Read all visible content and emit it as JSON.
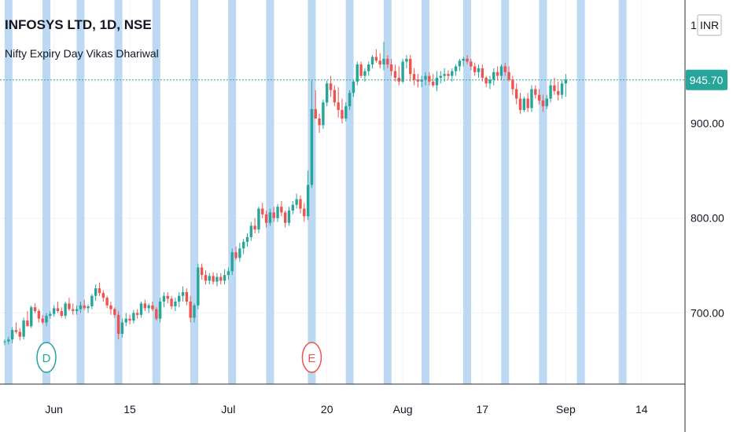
{
  "header": {
    "title": "INFOSYS LTD, 1D, NSE",
    "indicator": "Nifty Expiry Day Vikas Dhariwal"
  },
  "price_axis": {
    "currency": "INR",
    "last_price": "945.70",
    "top_label": "1 0"
  },
  "markers": [
    {
      "letter": "D",
      "color": "#26a69a",
      "index": 11
    },
    {
      "letter": "E",
      "color": "#ef5350",
      "index": 81
    }
  ],
  "colors": {
    "up": "#26a69a",
    "down": "#ef5350",
    "highlight": "#bcd8f2",
    "last_line": "#26a69a"
  },
  "chart_data": {
    "type": "candlestick",
    "title": "INFOSYS LTD, 1D, NSE",
    "ylim": [
      625,
      1030
    ],
    "y_ticks": [
      "700.00",
      "800.00",
      "900.00"
    ],
    "x_ticks": [
      {
        "label": "Jun",
        "index": 13
      },
      {
        "label": "15",
        "index": 33
      },
      {
        "label": "Jul",
        "index": 59
      },
      {
        "label": "20",
        "index": 85
      },
      {
        "label": "Aug",
        "index": 105
      },
      {
        "label": "17",
        "index": 126
      },
      {
        "label": "Sep",
        "index": 148
      },
      {
        "label": "14",
        "index": 168
      }
    ],
    "expiry_day_indices": [
      1,
      11,
      20,
      30,
      40,
      50,
      60,
      70,
      81,
      91,
      101,
      111,
      122,
      132,
      142,
      152,
      163
    ],
    "candles": [
      [
        670,
        672,
        666,
        670
      ],
      [
        670,
        675,
        667,
        672
      ],
      [
        672,
        685,
        668,
        682
      ],
      [
        682,
        690,
        678,
        680
      ],
      [
        680,
        684,
        671,
        675
      ],
      [
        675,
        695,
        672,
        692
      ],
      [
        692,
        702,
        688,
        686
      ],
      [
        686,
        708,
        684,
        706
      ],
      [
        706,
        710,
        700,
        702
      ],
      [
        702,
        704,
        690,
        694
      ],
      [
        694,
        698,
        688,
        690
      ],
      [
        690,
        700,
        686,
        697
      ],
      [
        697,
        702,
        694,
        699
      ],
      [
        699,
        708,
        696,
        705
      ],
      [
        705,
        712,
        700,
        702
      ],
      [
        702,
        706,
        695,
        697
      ],
      [
        697,
        712,
        694,
        710
      ],
      [
        710,
        716,
        702,
        704
      ],
      [
        704,
        710,
        698,
        702
      ],
      [
        702,
        708,
        698,
        704
      ],
      [
        704,
        712,
        700,
        708
      ],
      [
        708,
        714,
        703,
        705
      ],
      [
        705,
        709,
        700,
        707
      ],
      [
        707,
        720,
        704,
        718
      ],
      [
        718,
        730,
        713,
        726
      ],
      [
        726,
        732,
        718,
        721
      ],
      [
        721,
        724,
        712,
        716
      ],
      [
        716,
        718,
        705,
        708
      ],
      [
        708,
        712,
        698,
        704
      ],
      [
        704,
        706,
        695,
        698
      ],
      [
        698,
        702,
        672,
        678
      ],
      [
        678,
        694,
        674,
        690
      ],
      [
        690,
        700,
        686,
        694
      ],
      [
        694,
        698,
        688,
        692
      ],
      [
        692,
        703,
        689,
        700
      ],
      [
        700,
        704,
        694,
        698
      ],
      [
        698,
        712,
        695,
        710
      ],
      [
        710,
        714,
        702,
        705
      ],
      [
        705,
        710,
        700,
        708
      ],
      [
        708,
        712,
        702,
        704
      ],
      [
        704,
        706,
        692,
        694
      ],
      [
        694,
        716,
        690,
        712
      ],
      [
        712,
        722,
        706,
        718
      ],
      [
        718,
        722,
        710,
        715
      ],
      [
        715,
        718,
        704,
        707
      ],
      [
        707,
        716,
        702,
        712
      ],
      [
        712,
        722,
        706,
        718
      ],
      [
        718,
        728,
        712,
        722
      ],
      [
        722,
        726,
        708,
        712
      ],
      [
        712,
        718,
        690,
        695
      ],
      [
        695,
        710,
        690,
        708
      ],
      [
        708,
        752,
        704,
        748
      ],
      [
        748,
        752,
        735,
        740
      ],
      [
        740,
        745,
        730,
        734
      ],
      [
        734,
        742,
        730,
        739
      ],
      [
        739,
        743,
        730,
        733
      ],
      [
        733,
        742,
        728,
        738
      ],
      [
        738,
        742,
        730,
        734
      ],
      [
        734,
        746,
        730,
        740
      ],
      [
        740,
        748,
        735,
        744
      ],
      [
        744,
        768,
        740,
        764
      ],
      [
        764,
        770,
        756,
        758
      ],
      [
        758,
        774,
        754,
        768
      ],
      [
        768,
        778,
        762,
        775
      ],
      [
        775,
        784,
        770,
        780
      ],
      [
        780,
        796,
        776,
        792
      ],
      [
        792,
        800,
        784,
        788
      ],
      [
        788,
        812,
        784,
        810
      ],
      [
        810,
        816,
        800,
        804
      ],
      [
        804,
        808,
        790,
        795
      ],
      [
        795,
        810,
        792,
        806
      ],
      [
        806,
        812,
        796,
        800
      ],
      [
        800,
        815,
        796,
        812
      ],
      [
        812,
        818,
        802,
        806
      ],
      [
        806,
        808,
        790,
        795
      ],
      [
        795,
        812,
        792,
        808
      ],
      [
        808,
        818,
        804,
        814
      ],
      [
        814,
        826,
        810,
        820
      ],
      [
        820,
        824,
        805,
        810
      ],
      [
        810,
        816,
        796,
        802
      ],
      [
        802,
        850,
        798,
        835
      ],
      [
        835,
        945,
        832,
        915
      ],
      [
        915,
        935,
        905,
        905
      ],
      [
        905,
        910,
        890,
        898
      ],
      [
        898,
        925,
        894,
        922
      ],
      [
        922,
        945,
        918,
        942
      ],
      [
        942,
        950,
        928,
        935
      ],
      [
        935,
        940,
        918,
        922
      ],
      [
        922,
        938,
        906,
        914
      ],
      [
        914,
        926,
        900,
        905
      ],
      [
        905,
        922,
        902,
        918
      ],
      [
        918,
        935,
        914,
        932
      ],
      [
        932,
        945,
        928,
        944
      ],
      [
        944,
        965,
        940,
        962
      ],
      [
        962,
        965,
        948,
        950
      ],
      [
        950,
        958,
        944,
        955
      ],
      [
        955,
        965,
        950,
        962
      ],
      [
        962,
        972,
        958,
        970
      ],
      [
        970,
        978,
        964,
        966
      ],
      [
        966,
        974,
        958,
        962
      ],
      [
        962,
        986,
        956,
        968
      ],
      [
        968,
        972,
        958,
        962
      ],
      [
        962,
        968,
        950,
        955
      ],
      [
        955,
        962,
        944,
        948
      ],
      [
        948,
        960,
        940,
        944
      ],
      [
        944,
        968,
        942,
        965
      ],
      [
        965,
        972,
        958,
        968
      ],
      [
        968,
        972,
        944,
        952
      ],
      [
        952,
        958,
        940,
        946
      ],
      [
        946,
        952,
        938,
        944
      ],
      [
        944,
        950,
        938,
        946
      ],
      [
        946,
        954,
        940,
        950
      ],
      [
        950,
        954,
        940,
        944
      ],
      [
        944,
        952,
        938,
        940
      ],
      [
        940,
        955,
        934,
        948
      ],
      [
        948,
        955,
        942,
        950
      ],
      [
        950,
        958,
        944,
        952
      ],
      [
        952,
        956,
        946,
        950
      ],
      [
        950,
        958,
        944,
        955
      ],
      [
        955,
        962,
        950,
        960
      ],
      [
        960,
        968,
        955,
        966
      ],
      [
        966,
        970,
        960,
        968
      ],
      [
        968,
        972,
        962,
        965
      ],
      [
        965,
        968,
        956,
        960
      ],
      [
        960,
        964,
        950,
        954
      ],
      [
        954,
        962,
        948,
        958
      ],
      [
        958,
        962,
        944,
        948
      ],
      [
        948,
        950,
        938,
        942
      ],
      [
        942,
        950,
        936,
        946
      ],
      [
        946,
        958,
        940,
        954
      ],
      [
        954,
        960,
        945,
        950
      ],
      [
        950,
        962,
        946,
        960
      ],
      [
        960,
        964,
        950,
        954
      ],
      [
        954,
        960,
        944,
        946
      ],
      [
        946,
        950,
        930,
        936
      ],
      [
        936,
        942,
        920,
        926
      ],
      [
        926,
        932,
        910,
        914
      ],
      [
        914,
        928,
        912,
        926
      ],
      [
        926,
        932,
        912,
        916
      ],
      [
        916,
        940,
        912,
        936
      ],
      [
        936,
        940,
        926,
        930
      ],
      [
        930,
        936,
        920,
        924
      ],
      [
        924,
        930,
        912,
        918
      ],
      [
        918,
        930,
        915,
        926
      ],
      [
        926,
        946,
        922,
        940
      ],
      [
        940,
        948,
        930,
        934
      ],
      [
        934,
        944,
        924,
        930
      ],
      [
        930,
        946,
        926,
        942
      ],
      [
        942,
        952,
        928,
        946
      ]
    ]
  }
}
